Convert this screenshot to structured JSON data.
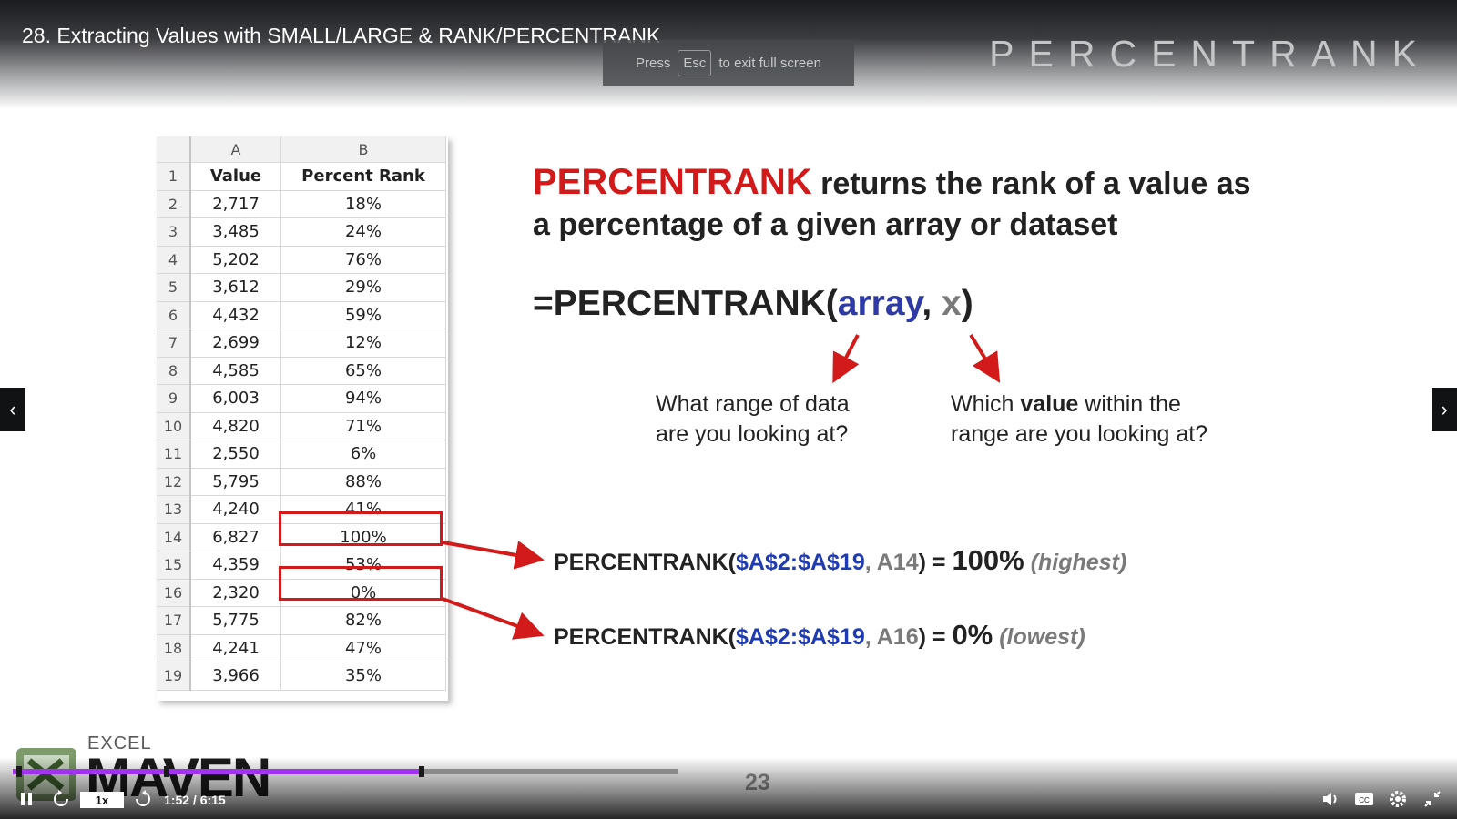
{
  "video": {
    "title": "28. Extracting Values with SMALL/LARGE & RANK/PERCENTRANK",
    "slide_heading": "PERCENTRANK",
    "slide_number": "23"
  },
  "fullscreen_hint": {
    "press": "Press",
    "key": "Esc",
    "rest": "to exit full screen"
  },
  "spreadsheet": {
    "col_headers": [
      "A",
      "B"
    ],
    "header": {
      "row": "1",
      "value": "Value",
      "percent": "Percent Rank"
    },
    "rows": [
      {
        "n": "2",
        "value": "2,717",
        "pct": "18%"
      },
      {
        "n": "3",
        "value": "3,485",
        "pct": "24%"
      },
      {
        "n": "4",
        "value": "5,202",
        "pct": "76%"
      },
      {
        "n": "5",
        "value": "3,612",
        "pct": "29%"
      },
      {
        "n": "6",
        "value": "4,432",
        "pct": "59%"
      },
      {
        "n": "7",
        "value": "2,699",
        "pct": "12%"
      },
      {
        "n": "8",
        "value": "4,585",
        "pct": "65%"
      },
      {
        "n": "9",
        "value": "6,003",
        "pct": "94%"
      },
      {
        "n": "10",
        "value": "4,820",
        "pct": "71%"
      },
      {
        "n": "11",
        "value": "2,550",
        "pct": "6%"
      },
      {
        "n": "12",
        "value": "5,795",
        "pct": "88%"
      },
      {
        "n": "13",
        "value": "4,240",
        "pct": "41%"
      },
      {
        "n": "14",
        "value": "6,827",
        "pct": "100%"
      },
      {
        "n": "15",
        "value": "4,359",
        "pct": "53%"
      },
      {
        "n": "16",
        "value": "2,320",
        "pct": "0%"
      },
      {
        "n": "17",
        "value": "5,775",
        "pct": "82%"
      },
      {
        "n": "18",
        "value": "4,241",
        "pct": "47%"
      },
      {
        "n": "19",
        "value": "3,966",
        "pct": "35%"
      }
    ]
  },
  "slide": {
    "desc_keyword": "PERCENTRANK",
    "desc_rest_line1": "returns the rank of a value as",
    "desc_line2": "a percentage of a given array or dataset",
    "formula": {
      "prefix": "=PERCENTRANK(",
      "arg1": "array",
      "sep": ", ",
      "arg2": "x",
      "suffix": ")"
    },
    "annot_array": {
      "line1": "What range of data",
      "line2": "are you looking at?"
    },
    "annot_x": {
      "pre": "Which ",
      "bold": "value",
      "post": " within the",
      "line2": "range are you looking at?"
    },
    "examples": [
      {
        "fn": "PERCENTRANK(",
        "range": "$A$2:$A$19",
        "comma": ", ",
        "cell": "A14",
        "close": ") = ",
        "result": "100%",
        "note": "(highest)"
      },
      {
        "fn": "PERCENTRANK(",
        "range": "$A$2:$A$19",
        "comma": ", ",
        "cell": "A16",
        "close": ") = ",
        "result": "0%",
        "note": "(lowest)"
      }
    ]
  },
  "logo": {
    "top": "EXCEL",
    "main": "MAVEN"
  },
  "player": {
    "speed": "1x",
    "time": "1:52 / 6:15",
    "progress_fraction": 0.3,
    "buffered_fraction": 0.465,
    "icons": [
      "pause-icon",
      "rewind-icon",
      "forward-icon",
      "volume-icon",
      "captions-icon",
      "settings-icon",
      "exit-fullscreen-icon",
      "chevron-left-icon",
      "chevron-right-icon"
    ],
    "accent_color": "#a133f0"
  }
}
